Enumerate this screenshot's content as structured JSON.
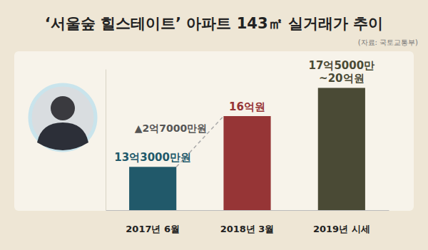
{
  "chart_data": {
    "type": "bar",
    "title": "‘서울숲 힐스테이트’ 아파트 143㎡ 실거래가 추이",
    "subtitle": "(자료: 국토교통부)",
    "categories": [
      "2017년 6월",
      "2018년 3월",
      "2019년 시세"
    ],
    "values": [
      13.3,
      16,
      17.5
    ],
    "value_labels": [
      "13억3000만원",
      "16억원",
      "17억5000만~20억원"
    ],
    "colors": [
      "#21596a",
      "#963536",
      "#4a4a35"
    ],
    "annotation": "▲2억7000만원",
    "ylim": [
      11,
      18.5
    ],
    "tick_labels": "x",
    "data_labels": true,
    "grid": false
  }
}
